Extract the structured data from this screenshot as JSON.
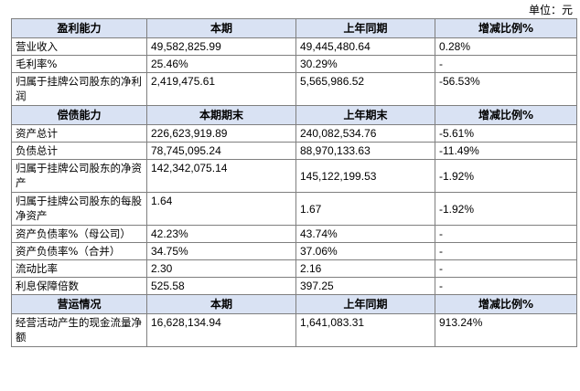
{
  "unit": "单位：元",
  "profit": {
    "headers": [
      "盈利能力",
      "本期",
      "上年同期",
      "增减比例%"
    ],
    "rows": [
      {
        "label": "营业收入",
        "current": "49,582,825.99",
        "prior": "49,445,480.64",
        "change": "0.28%"
      },
      {
        "label": "毛利率%",
        "current": "25.46%",
        "prior": "30.29%",
        "change": "-"
      },
      {
        "label": "归属于挂牌公司股东的净利润",
        "current": "2,419,475.61",
        "prior": "5,565,986.52",
        "change": "-56.53%"
      }
    ]
  },
  "solvency": {
    "headers": [
      "偿债能力",
      "本期期末",
      "上年期末",
      "增减比例%"
    ],
    "rows": [
      {
        "label": "资产总计",
        "current": "226,623,919.89",
        "prior": "240,082,534.76",
        "change": "-5.61%"
      },
      {
        "label": "负债总计",
        "current": "78,745,095.24",
        "prior": "88,970,133.63",
        "change": "-11.49%"
      },
      {
        "label": "归属于挂牌公司股东的净资产",
        "current": "142,342,075.14",
        "prior": "145,122,199.53",
        "change": "-1.92%"
      },
      {
        "label": "归属于挂牌公司股东的每股净资产",
        "current": "1.64",
        "prior": "1.67",
        "change": "-1.92%"
      },
      {
        "label": "资产负债率%（母公司）",
        "current": "42.23%",
        "prior": "43.74%",
        "change": "-"
      },
      {
        "label": "资产负债率%（合并）",
        "current": "34.75%",
        "prior": "37.06%",
        "change": "-"
      },
      {
        "label": "流动比率",
        "current": "2.30",
        "prior": "2.16",
        "change": "-"
      },
      {
        "label": "利息保障倍数",
        "current": "525.58",
        "prior": "397.25",
        "change": "-"
      }
    ]
  },
  "operations": {
    "headers": [
      "营运情况",
      "本期",
      "上年同期",
      "增减比例%"
    ],
    "rows": [
      {
        "label": "经营活动产生的现金流量净额",
        "current": "16,628,134.94",
        "prior": "1,641,083.31",
        "change": "913.24%"
      }
    ]
  }
}
